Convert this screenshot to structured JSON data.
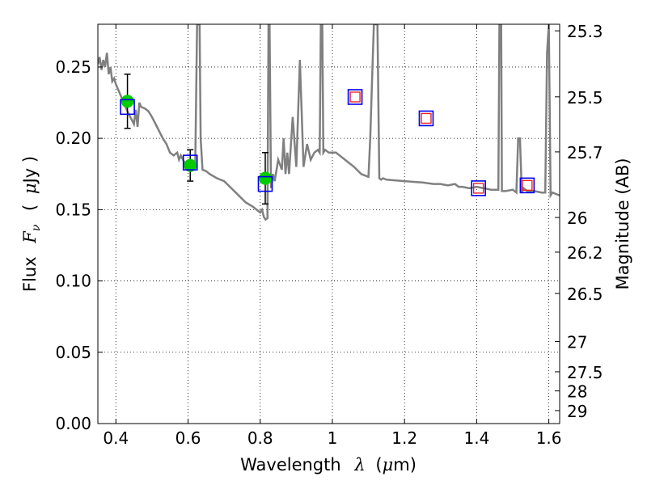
{
  "chart_data": {
    "type": "scatter",
    "title": "",
    "xlabel": {
      "prefix": "Wavelength",
      "symbol": "λ",
      "unit_open": "(",
      "unit_mu": "μ",
      "unit_rest": "m)"
    },
    "ylabel": {
      "prefix": "Flux",
      "symbol": "F",
      "subscript": "ν",
      "unit_open": "(",
      "unit_mu": "μ",
      "unit_rest": "Jy )"
    },
    "y2label": "Magnitude (AB)",
    "xlim": [
      0.35,
      1.63
    ],
    "ylim": [
      0.0,
      0.28
    ],
    "grid": true,
    "grid_style": "dotted",
    "xticks": [
      0.4,
      0.6,
      0.8,
      1.0,
      1.2,
      1.4,
      1.6
    ],
    "xtick_labels": [
      "0.4",
      "0.6",
      "0.8",
      "1",
      "1.2",
      "1.4",
      "1.6"
    ],
    "yticks": [
      0.0,
      0.05,
      0.1,
      0.15,
      0.2,
      0.25
    ],
    "ytick_labels": [
      "0.00",
      "0.05",
      "0.10",
      "0.15",
      "0.20",
      "0.25"
    ],
    "y2ticks": [
      {
        "label": "25.3",
        "flux": 0.2754
      },
      {
        "label": "25.5",
        "flux": 0.2291
      },
      {
        "label": "25.7",
        "flux": 0.1905
      },
      {
        "label": "26",
        "flux": 0.1445
      },
      {
        "label": "26.2",
        "flux": 0.1202
      },
      {
        "label": "26.5",
        "flux": 0.0912
      },
      {
        "label": "27",
        "flux": 0.0575
      },
      {
        "label": "27.5",
        "flux": 0.0363
      },
      {
        "label": "28",
        "flux": 0.0229
      },
      {
        "label": "29",
        "flux": 0.0091
      }
    ],
    "series": [
      {
        "kind": "model_spectrum",
        "color": "#808080",
        "x": [
          0.35,
          0.355,
          0.36,
          0.365,
          0.37,
          0.375,
          0.38,
          0.385,
          0.39,
          0.395,
          0.4,
          0.405,
          0.41,
          0.42,
          0.43,
          0.44,
          0.45,
          0.455,
          0.46,
          0.465,
          0.47,
          0.48,
          0.49,
          0.5,
          0.51,
          0.52,
          0.53,
          0.54,
          0.55,
          0.56,
          0.57,
          0.575,
          0.58,
          0.59,
          0.6,
          0.61,
          0.62,
          0.625,
          0.628,
          0.632,
          0.635,
          0.64,
          0.65,
          0.66,
          0.68,
          0.7,
          0.72,
          0.74,
          0.76,
          0.78,
          0.79,
          0.8,
          0.805,
          0.81,
          0.815,
          0.82,
          0.823,
          0.826,
          0.83,
          0.835,
          0.84,
          0.85,
          0.86,
          0.865,
          0.87,
          0.875,
          0.88,
          0.89,
          0.9,
          0.91,
          0.92,
          0.93,
          0.94,
          0.95,
          0.96,
          0.965,
          0.968,
          0.972,
          0.975,
          0.98,
          0.99,
          1.0,
          1.01,
          1.02,
          1.04,
          1.06,
          1.08,
          1.1,
          1.105,
          1.11,
          1.115,
          1.12,
          1.125,
          1.13,
          1.135,
          1.14,
          1.15,
          1.2,
          1.25,
          1.28,
          1.3,
          1.32,
          1.34,
          1.35,
          1.36,
          1.38,
          1.4,
          1.42,
          1.44,
          1.46,
          1.463,
          1.466,
          1.468,
          1.47,
          1.48,
          1.5,
          1.51,
          1.515,
          1.52,
          1.525,
          1.53,
          1.54,
          1.55,
          1.56,
          1.58,
          1.59,
          1.595,
          1.6,
          1.605,
          1.61,
          1.62,
          1.63
        ],
        "y": [
          0.252,
          0.257,
          0.248,
          0.255,
          0.25,
          0.26,
          0.245,
          0.25,
          0.24,
          0.242,
          0.238,
          0.235,
          0.232,
          0.226,
          0.22,
          0.215,
          0.21,
          0.22,
          0.208,
          0.225,
          0.222,
          0.221,
          0.219,
          0.215,
          0.21,
          0.205,
          0.2,
          0.196,
          0.19,
          0.188,
          0.19,
          0.185,
          0.188,
          0.183,
          0.18,
          0.182,
          0.18,
          0.28,
          0.28,
          0.28,
          0.2,
          0.178,
          0.177,
          0.175,
          0.172,
          0.17,
          0.165,
          0.16,
          0.155,
          0.152,
          0.15,
          0.148,
          0.15,
          0.145,
          0.143,
          0.144,
          0.28,
          0.28,
          0.165,
          0.175,
          0.17,
          0.185,
          0.178,
          0.2,
          0.175,
          0.19,
          0.175,
          0.215,
          0.18,
          0.255,
          0.18,
          0.196,
          0.185,
          0.19,
          0.192,
          0.19,
          0.28,
          0.28,
          0.19,
          0.192,
          0.19,
          0.19,
          0.19,
          0.188,
          0.184,
          0.18,
          0.175,
          0.173,
          0.2,
          0.24,
          0.28,
          0.28,
          0.28,
          0.172,
          0.171,
          0.172,
          0.171,
          0.17,
          0.169,
          0.168,
          0.168,
          0.167,
          0.168,
          0.166,
          0.166,
          0.165,
          0.166,
          0.165,
          0.164,
          0.164,
          0.28,
          0.28,
          0.28,
          0.163,
          0.163,
          0.164,
          0.162,
          0.2,
          0.2,
          0.162,
          0.165,
          0.163,
          0.163,
          0.163,
          0.162,
          0.162,
          0.26,
          0.28,
          0.16,
          0.162,
          0.161,
          0.16
        ]
      },
      {
        "kind": "photometry_measured",
        "color": "#00cc00",
        "x": [
          0.432,
          0.606,
          0.814
        ],
        "y": [
          0.226,
          0.181,
          0.172
        ],
        "yerr": [
          0.019,
          0.011,
          0.018
        ]
      },
      {
        "kind": "model_bandpass_flux",
        "color": "#0000ee",
        "x": [
          0.432,
          0.606,
          0.814,
          1.063,
          1.26,
          1.405,
          1.54
        ],
        "y": [
          0.222,
          0.183,
          0.168,
          0.229,
          0.214,
          0.165,
          0.167
        ]
      },
      {
        "kind": "upper_bands_predicted",
        "color": "#ee2222",
        "x": [
          1.063,
          1.26,
          1.405,
          1.54
        ],
        "y": [
          0.229,
          0.214,
          0.165,
          0.167
        ]
      }
    ]
  }
}
